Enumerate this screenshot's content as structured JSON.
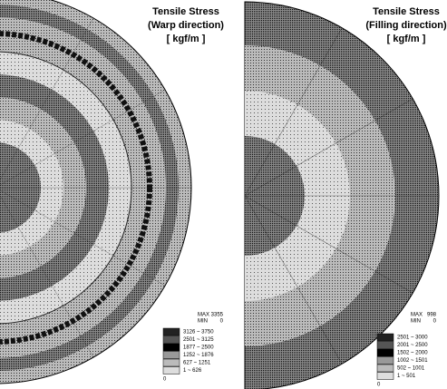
{
  "panels": [
    {
      "title": [
        "Tensile Stress",
        "(Warp direction)",
        "[ kgf/m ]"
      ],
      "max_label": "MAX",
      "max": "3355",
      "min_label": "MIN",
      "min": "0",
      "legend": [
        "3126 ~ 3750",
        "2501 ~ 3125",
        "1877 ~ 2500",
        "1252 ~ 1876",
        "627 ~ 1251",
        "1 ~ 626",
        "0"
      ]
    },
    {
      "title": [
        "Tensile Stress",
        "(Filling direction)",
        "[ kgf/m ]"
      ],
      "max_label": "MAX",
      "max": "998",
      "min_label": "MIN",
      "min": "0",
      "legend": [
        "2501 ~ 3000",
        "2001 ~ 2500",
        "1502 ~ 2000",
        "1002 ~ 1501",
        "502 ~ 1001",
        "1 ~ 501",
        "0"
      ]
    }
  ]
}
